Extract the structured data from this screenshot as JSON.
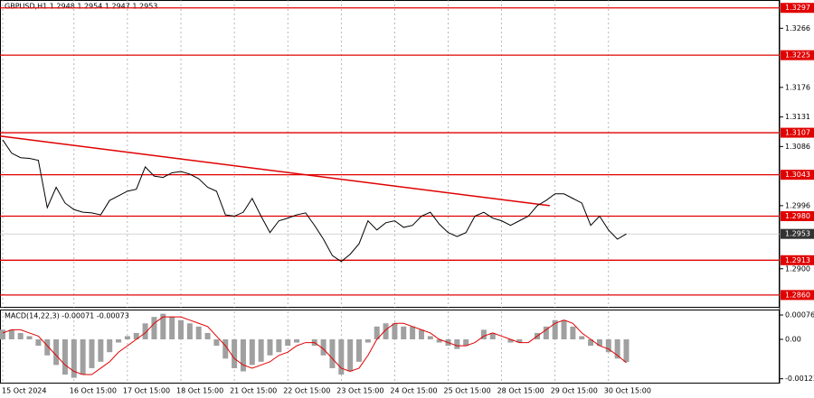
{
  "chart_data": [
    {
      "type": "line",
      "title": "GBPUSD,H1  1.2948 1.2954 1.2947 1.2953",
      "color": "#000000",
      "categories": [
        "15 Oct 2024",
        null,
        null,
        null,
        null,
        null,
        null,
        null,
        "16 Oct 15:00",
        null,
        null,
        null,
        null,
        null,
        "17 Oct 15:00",
        null,
        null,
        null,
        null,
        null,
        "18 Oct 15:00",
        null,
        null,
        null,
        null,
        null,
        "21 Oct 15:00",
        null,
        null,
        null,
        null,
        null,
        "22 Oct 15:00",
        null,
        null,
        null,
        null,
        null,
        "23 Oct 15:00",
        null,
        null,
        null,
        null,
        null,
        "24 Oct 15:00",
        null,
        null,
        null,
        null,
        null,
        "25 Oct 15:00",
        null,
        null,
        null,
        null,
        null,
        "28 Oct 15:00",
        null,
        null,
        null,
        null,
        null,
        "29 Oct 15:00",
        null,
        null,
        null,
        null,
        null,
        "30 Oct 15:00",
        null,
        null
      ],
      "values": [
        1.3096,
        1.3076,
        1.3069,
        1.3068,
        1.3065,
        1.2993,
        1.3024,
        1.3,
        1.299,
        1.2986,
        1.2985,
        1.2982,
        1.3004,
        1.3011,
        1.3018,
        1.3021,
        1.3055,
        1.3041,
        1.3039,
        1.3046,
        1.3048,
        1.3044,
        1.3037,
        1.3024,
        1.3018,
        1.2982,
        1.298,
        1.2986,
        1.3007,
        1.298,
        1.2955,
        1.2973,
        1.2977,
        1.2982,
        1.2985,
        1.2966,
        1.2945,
        1.292,
        1.2911,
        1.2922,
        1.2938,
        1.2973,
        1.2959,
        1.297,
        1.2973,
        1.2963,
        1.2966,
        1.298,
        1.2986,
        1.2968,
        1.2955,
        1.2949,
        1.2955,
        1.298,
        1.2986,
        1.2977,
        1.2973,
        1.2966,
        1.2973,
        1.298,
        1.2996,
        1.3004,
        1.3014,
        1.3014,
        1.3007,
        1.3,
        1.2966,
        1.298,
        1.2959,
        1.2945,
        1.2953
      ],
      "ylim": [
        1.2842,
        1.3309
      ],
      "yticks": [
        1.3266,
        1.3176,
        1.3131,
        1.3086,
        1.2996,
        {
          "value": 1.29,
          "label": "1.2900"
        }
      ],
      "levels": [
        1.3297,
        1.3225,
        1.3107,
        1.3043,
        {
          "value": 1.298,
          "label": "1.2980"
        },
        1.2913,
        {
          "value": 1.286,
          "label": "1.2860"
        }
      ],
      "level_color": "#e00000",
      "last_price": 1.2953,
      "trendline": {
        "from_index": 0,
        "from_value": 1.3102,
        "to_index": 61,
        "to_value": 1.2996
      }
    },
    {
      "type": "bar",
      "title": "MACD(14,22,3) -0.00071 -0.00073",
      "ylim": [
        -0.00138,
        0.00093
      ],
      "yticks": [
        0.00076,
        {
          "value": 0,
          "label": "0.00"
        },
        -0.00123
      ],
      "series": [
        {
          "name": "MACD",
          "color": "#a0a0a0",
          "values": [
            0.0003,
            0.0003,
            0.0002,
            0.0001,
            -0.0002,
            -0.0005,
            -0.0008,
            -0.0011,
            -0.0012,
            -0.0011,
            -0.0009,
            -0.0007,
            -0.0004,
            -0.0001,
            0.0001,
            0.0002,
            0.0005,
            0.0007,
            0.0008,
            0.0007,
            0.0006,
            0.0005,
            0.0004,
            0.0002,
            -0.0002,
            -0.0006,
            -0.0009,
            -0.001,
            -0.0008,
            -0.0007,
            -0.0005,
            -0.0004,
            -0.0002,
            -0.0001,
            0,
            -0.0002,
            -0.0005,
            -0.0009,
            -0.0011,
            -0.001,
            -0.0007,
            -0.0001,
            0.0004,
            0.0005,
            0.0005,
            0.0004,
            0.0004,
            0.0003,
            0.0001,
            -0.0001,
            -0.0002,
            -0.0003,
            -0.0002,
            0,
            0.0003,
            0.0002,
            0,
            -0.0001,
            -0.0001,
            0,
            0.0002,
            0.0004,
            0.0006,
            0.0006,
            0.0004,
            0.0001,
            -0.0002,
            -0.0002,
            -0.0004,
            -0.0006,
            -0.00071
          ]
        },
        {
          "name": "Signal",
          "color": "#e00000",
          "values": [
            0.0002,
            0.0003,
            0.0003,
            0.0002,
            0.0001,
            -0.0002,
            -0.0005,
            -0.0008,
            -0.001,
            -0.0011,
            -0.0011,
            -0.0009,
            -0.0007,
            -0.0004,
            -0.0002,
            0,
            0.0002,
            0.0005,
            0.0007,
            0.0007,
            0.0007,
            0.0006,
            0.0005,
            0.0004,
            0.0001,
            -0.0002,
            -0.0006,
            -0.0008,
            -0.0009,
            -0.0008,
            -0.0007,
            -0.0005,
            -0.0004,
            -0.0002,
            -0.0001,
            -0.0001,
            -0.0003,
            -0.0006,
            -0.0009,
            -0.001,
            -0.0009,
            -0.0005,
            0,
            0.0003,
            0.0005,
            0.0005,
            0.0004,
            0.0003,
            0.0002,
            0,
            -0.0001,
            -0.0002,
            -0.0002,
            -0.0001,
            0.0001,
            0.0002,
            0.0001,
            0,
            -0.0001,
            -0.0001,
            0.0001,
            0.0003,
            0.0005,
            0.0006,
            0.0005,
            0.0002,
            0,
            -0.0002,
            -0.0003,
            -0.0005,
            -0.00073
          ]
        }
      ]
    }
  ]
}
